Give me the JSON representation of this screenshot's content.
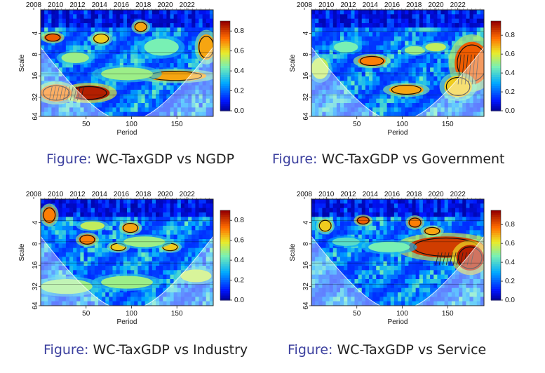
{
  "chart_data": [
    {
      "type": "heatmap",
      "title": "WC-TaxGDP vs NGDP",
      "caption_label": "Figure:",
      "caption_text": "WC-TaxGDP vs NGDP",
      "xlabel": "Period",
      "ylabel": "Scale",
      "x_ticks": [
        "50",
        "100",
        "150"
      ],
      "y_ticks": [
        "4",
        "8",
        "16",
        "32",
        "64"
      ],
      "top_axis": [
        "2008",
        "2010",
        "2012",
        "2014",
        "2016",
        "2018",
        "2020",
        "2022"
      ],
      "colorbar_ticks": [
        "0.8",
        "0.6",
        "0.4",
        "0.2",
        "0.0"
      ],
      "colorbar_range": [
        0,
        0.9
      ]
    },
    {
      "type": "heatmap",
      "title": "WC-TaxGDP vs Government",
      "caption_label": "Figure:",
      "caption_text": "WC-TaxGDP vs Government",
      "xlabel": "Period",
      "ylabel": "Scale",
      "x_ticks": [
        "50",
        "100",
        "150"
      ],
      "y_ticks": [
        "4",
        "8",
        "16",
        "32",
        "64"
      ],
      "top_axis": [
        "2008",
        "2010",
        "2012",
        "2014",
        "2016",
        "2018",
        "2020",
        "2022"
      ],
      "colorbar_ticks": [
        "0.8",
        "0.6",
        "0.4",
        "0.2",
        "0.0"
      ],
      "colorbar_range": [
        0,
        0.95
      ]
    },
    {
      "type": "heatmap",
      "title": "WC-TaxGDP vs Industry",
      "caption_label": "Figure:",
      "caption_text": "WC-TaxGDP vs Industry",
      "xlabel": "Period",
      "ylabel": "Scale",
      "x_ticks": [
        "50",
        "100",
        "150"
      ],
      "y_ticks": [
        "4",
        "8",
        "16",
        "32",
        "64"
      ],
      "top_axis": [
        "2008",
        "2010",
        "2012",
        "2014",
        "2016",
        "2018",
        "2020",
        "2022"
      ],
      "colorbar_ticks": [
        "0.8",
        "0.6",
        "0.4",
        "0.2",
        "0.0"
      ],
      "colorbar_range": [
        0,
        0.9
      ]
    },
    {
      "type": "heatmap",
      "title": "WC-TaxGDP vs Service",
      "caption_label": "Figure:",
      "caption_text": "WC-TaxGDP vs Service",
      "xlabel": "Period",
      "ylabel": "Scale",
      "x_ticks": [
        "50",
        "100",
        "150"
      ],
      "y_ticks": [
        "4",
        "8",
        "16",
        "32",
        "64"
      ],
      "top_axis": [
        "2008",
        "2010",
        "2012",
        "2014",
        "2016",
        "2018",
        "2020",
        "2022"
      ],
      "colorbar_ticks": [
        "0.8",
        "0.6",
        "0.4",
        "0.2",
        "0.0"
      ],
      "colorbar_range": [
        0,
        0.95
      ]
    }
  ]
}
